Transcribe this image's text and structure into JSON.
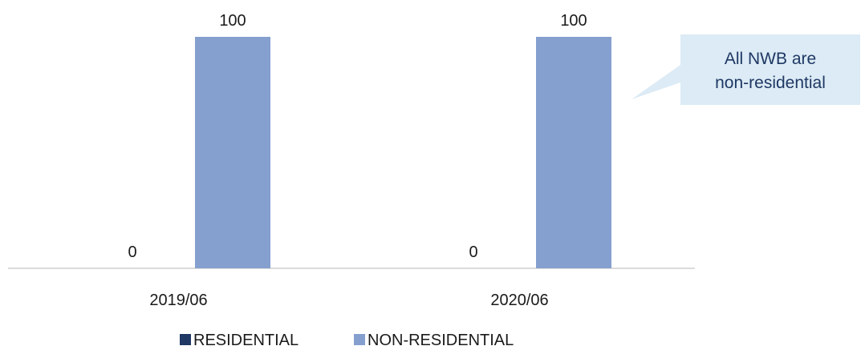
{
  "chart_data": {
    "type": "bar",
    "title": "",
    "xlabel": "",
    "ylabel": "",
    "categories": [
      "2019/06",
      "2020/06"
    ],
    "series": [
      {
        "name": "RESIDENTIAL",
        "values": [
          0,
          0
        ],
        "color": "#1f3864"
      },
      {
        "name": "NON-RESIDENTIAL",
        "values": [
          100,
          100
        ],
        "color": "#859fcf"
      }
    ],
    "ylim": [
      0,
      100
    ],
    "grid": false,
    "legend": "bottom",
    "data_labels": true
  },
  "callout": {
    "line1": "All NWB are",
    "line2": "non-residential",
    "fill_color": "#dcebf5",
    "text_color": "#1f3864"
  }
}
